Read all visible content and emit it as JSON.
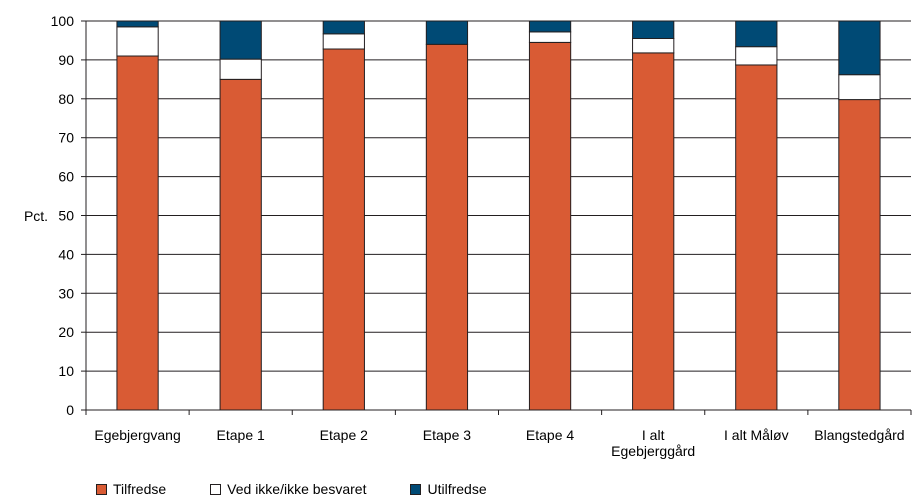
{
  "chart_data": {
    "type": "bar",
    "stacked": true,
    "ylabel": "Pct.",
    "ylim": [
      0,
      100
    ],
    "yticks": [
      0,
      10,
      20,
      30,
      40,
      50,
      60,
      70,
      80,
      90,
      100
    ],
    "grid": true,
    "legend_position": "bottom-left",
    "categories": [
      [
        "Egebjergvang"
      ],
      [
        "Etape 1"
      ],
      [
        "Etape 2"
      ],
      [
        "Etape 3"
      ],
      [
        "Etape 4"
      ],
      [
        "I alt",
        "Egebjerggård"
      ],
      [
        "I alt Måløv"
      ],
      [
        "Blangstedgård"
      ]
    ],
    "series": [
      {
        "name": "Tilfredse",
        "color": "#d95b34",
        "values": [
          91,
          85,
          92.8,
          94,
          94.5,
          91.8,
          88.7,
          79.8
        ]
      },
      {
        "name": "Ved ikke/ikke besvaret",
        "color": "#ffffff",
        "values": [
          7.5,
          5.2,
          3.9,
          0,
          2.7,
          3.7,
          4.7,
          6.4
        ]
      },
      {
        "name": "Utilfredse",
        "color": "#004a75",
        "values": [
          1.5,
          9.8,
          3.3,
          6,
          2.8,
          4.5,
          6.6,
          13.8
        ]
      }
    ]
  }
}
